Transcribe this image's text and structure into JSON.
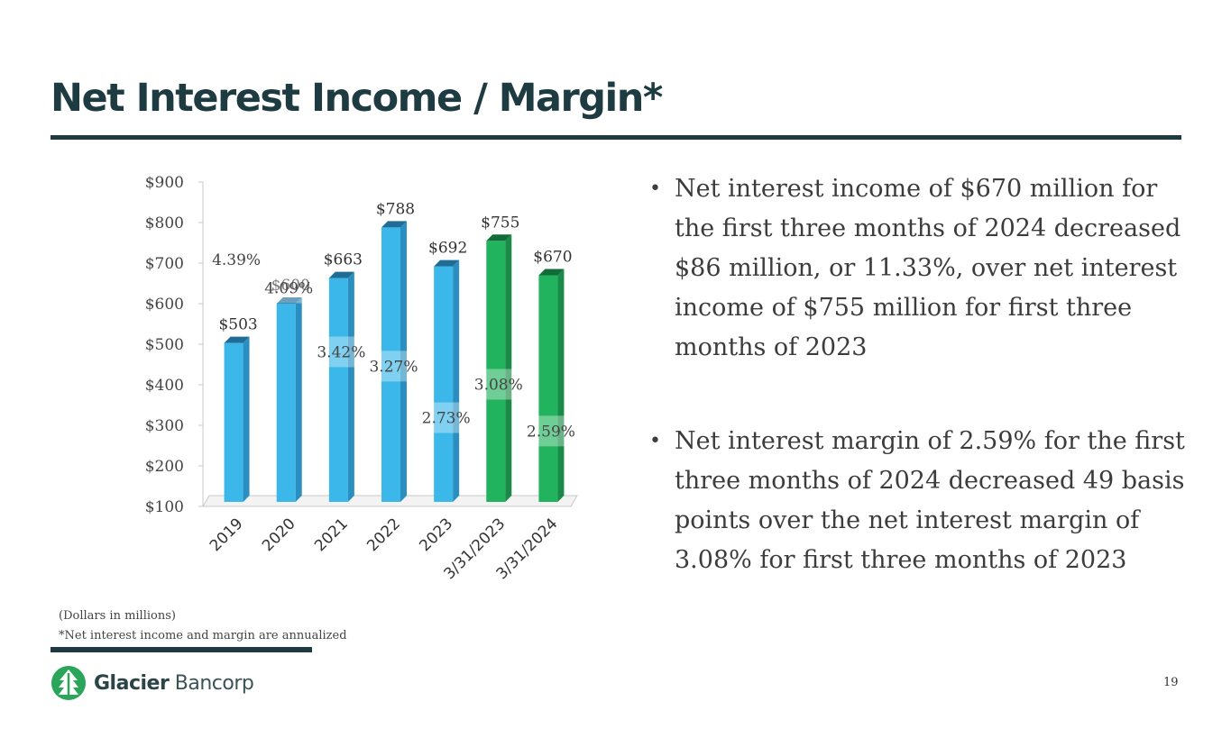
{
  "slide": {
    "title": "Net Interest Income / Margin*",
    "bullets": [
      "Net interest income of $670 million for the first three months of 2024 decreased $86 million, or 11.33%, over net interest income of $755 million for first three months of 2023",
      "Net interest margin of 2.59% for the first three months of 2024 decreased 49 basis points over the net interest margin of 3.08% for first three months of 2023"
    ],
    "footnotes": [
      "(Dollars in millions)",
      "*Net interest income and margin are annualized"
    ],
    "logo": {
      "bold": "Glacier",
      "light": " Bancorp"
    },
    "page_number": "19"
  },
  "colors": {
    "title": "#1d3b40",
    "bar_blue": "#3bb7ea",
    "bar_green": "#22b35e",
    "text": "#3c3c3c",
    "logo_green": "#2aa55a"
  },
  "chart_data": {
    "type": "bar",
    "categories": [
      "2019",
      "2020",
      "2021",
      "2022",
      "2023",
      "3/31/2023",
      "3/31/2024"
    ],
    "series": [
      {
        "values": [
          503,
          600,
          663,
          788,
          692,
          755,
          670
        ]
      },
      {
        "values": [
          4.39,
          4.09,
          3.42,
          3.27,
          2.73,
          3.08,
          2.59
        ]
      }
    ],
    "value_labels": [
      "$503",
      "$600",
      "$663",
      "$788",
      "$692",
      "$755",
      "$670"
    ],
    "margin_labels": [
      "4.39%",
      "4.09%",
      "3.42%",
      "3.27%",
      "2.73%",
      "3.08%",
      "2.59%"
    ],
    "bar_colors": [
      "blue",
      "blue",
      "blue",
      "blue",
      "blue",
      "green",
      "green"
    ],
    "ylim": [
      100,
      900
    ],
    "yticks": [
      100,
      200,
      300,
      400,
      500,
      600,
      700,
      800,
      900
    ],
    "ytick_labels": [
      "$100",
      "$200",
      "$300",
      "$400",
      "$500",
      "$600",
      "$700",
      "$800",
      "$900"
    ],
    "margin_scale": [
      1.8,
      5.2
    ],
    "grid": false,
    "legend": "none",
    "xlabel": "",
    "ylabel": ""
  }
}
